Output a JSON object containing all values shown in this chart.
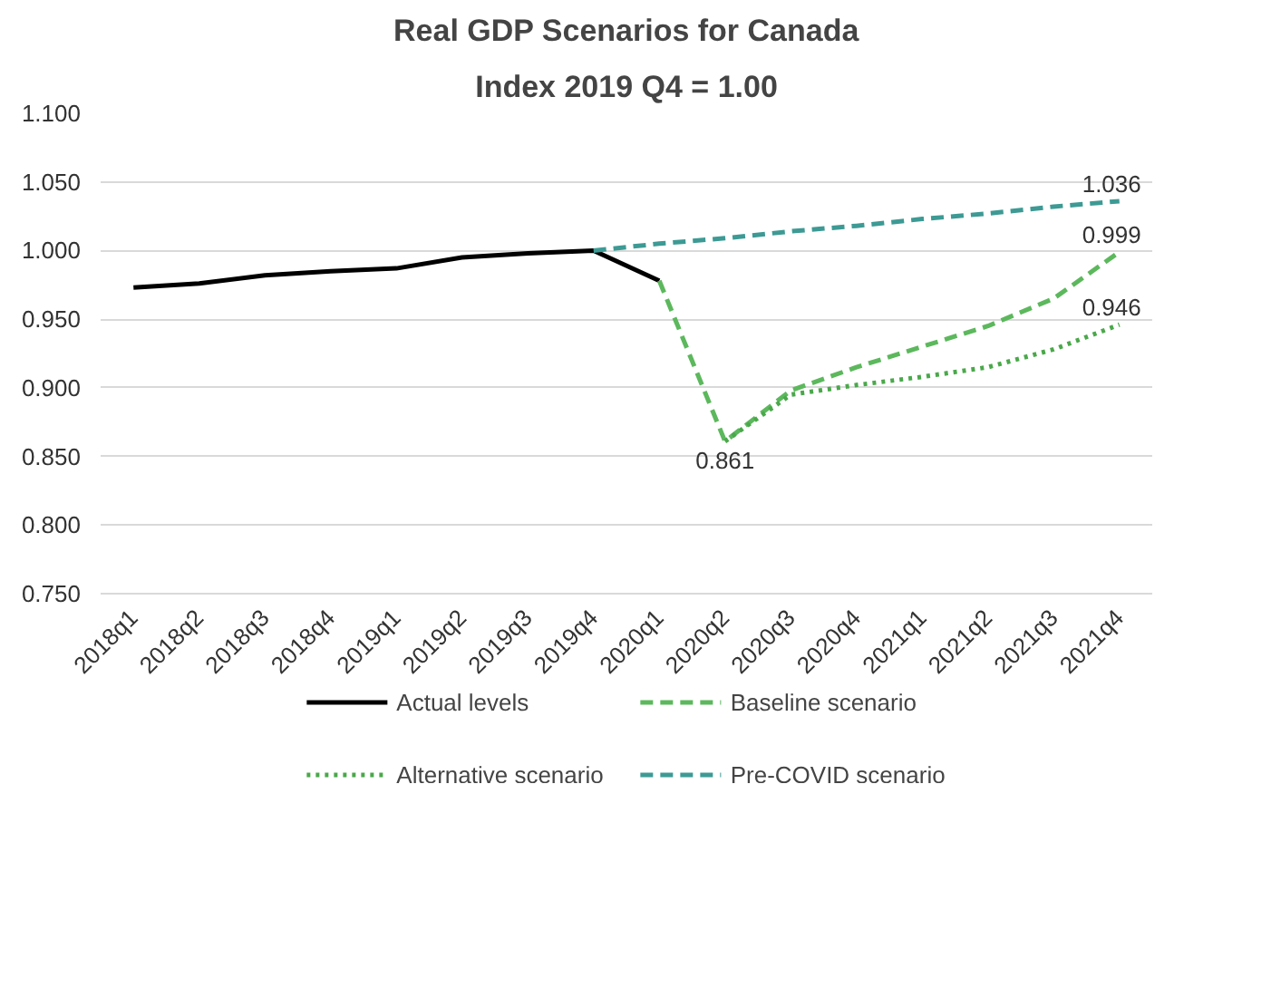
{
  "chart_data": {
    "type": "line",
    "title": "Real GDP Scenarios for Canada",
    "subtitle": "Index 2019 Q4 = 1.00",
    "categories": [
      "2018q1",
      "2018q2",
      "2018q3",
      "2018q4",
      "2019q1",
      "2019q2",
      "2019q3",
      "2019q4",
      "2020q1",
      "2020q2",
      "2020q3",
      "2020q4",
      "2021q1",
      "2021q2",
      "2021q3",
      "2021q4"
    ],
    "ylim": [
      0.75,
      1.1
    ],
    "yticks": [
      {
        "value": 0.75,
        "label": "0.750"
      },
      {
        "value": 0.8,
        "label": "0.800"
      },
      {
        "value": 0.85,
        "label": "0.850"
      },
      {
        "value": 0.9,
        "label": "0.900"
      },
      {
        "value": 0.95,
        "label": "0.950"
      },
      {
        "value": 1.0,
        "label": "1.000"
      },
      {
        "value": 1.05,
        "label": "1.050"
      },
      {
        "value": 1.1,
        "label": "1.100"
      }
    ],
    "grid": "y",
    "legend": "bottom",
    "marker": "none",
    "series": [
      {
        "name": "Actual levels",
        "color": "#000000",
        "line_style": "solid",
        "values": [
          0.973,
          0.976,
          0.982,
          0.985,
          0.987,
          0.995,
          0.998,
          1.0,
          0.978,
          null,
          null,
          null,
          null,
          null,
          null,
          null
        ]
      },
      {
        "name": "Baseline scenario",
        "color": "#5cb85c",
        "line_style": "dashed",
        "values": [
          null,
          null,
          null,
          null,
          null,
          null,
          null,
          null,
          0.978,
          0.861,
          0.898,
          0.915,
          0.93,
          0.945,
          0.965,
          0.999
        ],
        "value_labels": [
          null,
          null,
          null,
          null,
          null,
          null,
          null,
          null,
          null,
          "0.861",
          null,
          null,
          null,
          null,
          null,
          "0.999"
        ]
      },
      {
        "name": "Alternative scenario",
        "color": "#4aa84a",
        "line_style": "dotted",
        "values": [
          null,
          null,
          null,
          null,
          null,
          null,
          null,
          null,
          null,
          0.861,
          0.895,
          0.902,
          0.908,
          0.915,
          0.928,
          0.946
        ],
        "value_labels": [
          null,
          null,
          null,
          null,
          null,
          null,
          null,
          null,
          null,
          null,
          null,
          null,
          null,
          null,
          null,
          "0.946"
        ]
      },
      {
        "name": "Pre-COVID scenario",
        "color": "#3d9a94",
        "line_style": "dashed",
        "values": [
          null,
          null,
          null,
          null,
          null,
          null,
          null,
          1.0,
          1.005,
          1.009,
          1.014,
          1.018,
          1.023,
          1.027,
          1.032,
          1.036
        ],
        "value_labels": [
          null,
          null,
          null,
          null,
          null,
          null,
          null,
          null,
          null,
          null,
          null,
          null,
          null,
          null,
          null,
          "1.036"
        ]
      }
    ]
  }
}
